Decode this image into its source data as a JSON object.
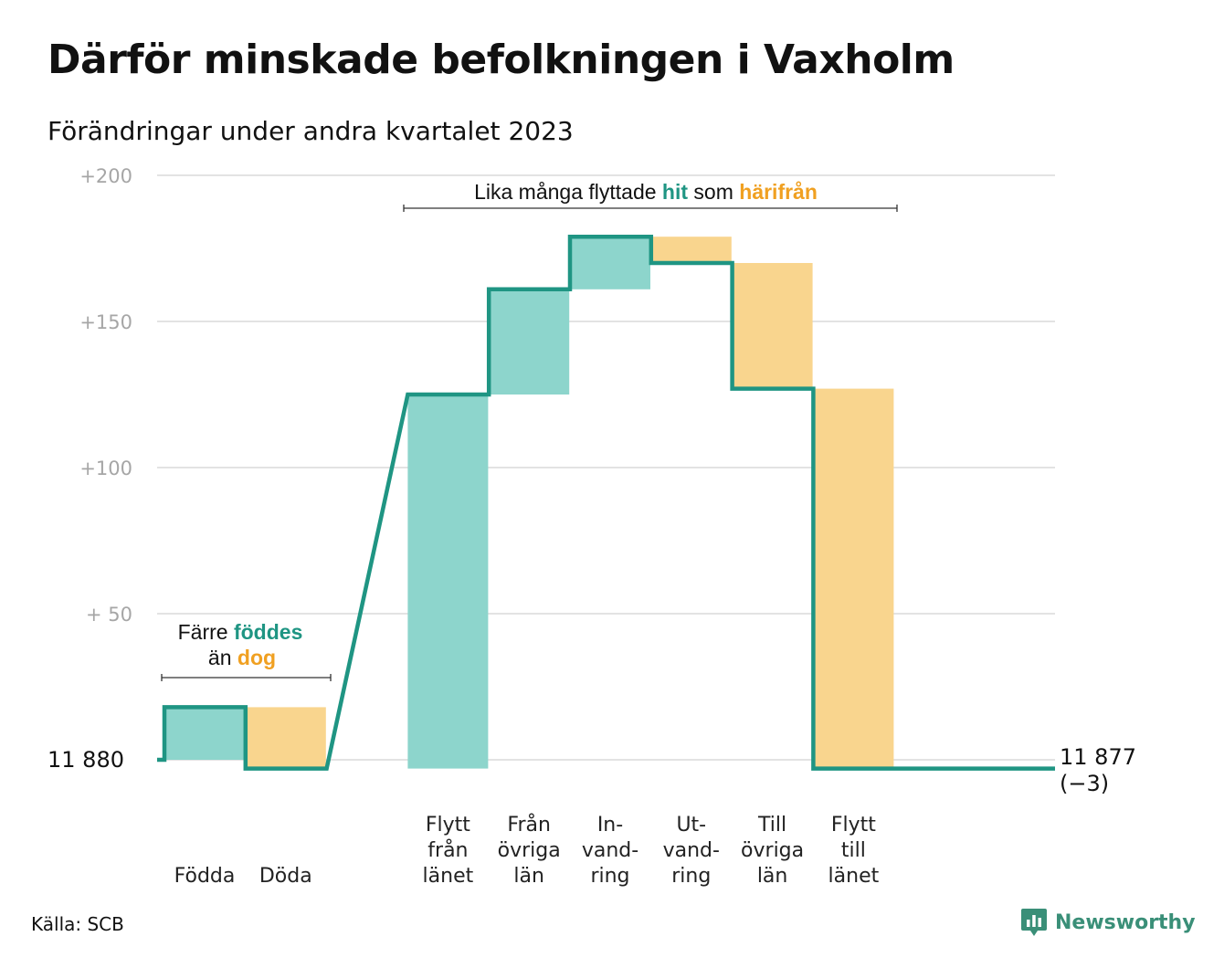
{
  "title": "Därför minskade befolkningen i Vaxholm",
  "subtitle": "Förändringar under andra kvartalet 2023",
  "source": "Källa: SCB",
  "brand": {
    "name": "Newsworthy",
    "icon": "bar-chart-speech-bubble-icon"
  },
  "colors": {
    "increase": "#8dd5cc",
    "decrease": "#f9d58e",
    "line": "#1f9583",
    "accent_in": "#1f9583",
    "accent_out": "#f0a021",
    "grid": "#e3e3e3"
  },
  "chart_data": {
    "type": "waterfall",
    "title": "Därför minskade befolkningen i Vaxholm",
    "subtitle": "Förändringar under andra kvartalet 2023",
    "baseline": 11880,
    "y_tick_values": [
      0,
      50,
      100,
      150,
      200
    ],
    "y_tick_labels": [
      "",
      "+  50",
      "+100",
      "+150",
      "+200"
    ],
    "ylim": [
      -3,
      200
    ],
    "grid": true,
    "start_label": "11  880",
    "end_label": [
      "11 877",
      "(−3)"
    ],
    "end_value": 11877,
    "change": -3,
    "steps": [
      {
        "name": "Födda",
        "lines": [
          "Födda"
        ],
        "value": 18,
        "slot": 0
      },
      {
        "name": "Döda",
        "lines": [
          "Döda"
        ],
        "value": -21,
        "slot": 1
      },
      {
        "name": "Flytt från länet",
        "lines": [
          "Flytt",
          "från",
          "länet"
        ],
        "value": 128,
        "slot": 3
      },
      {
        "name": "Från övriga län",
        "lines": [
          "Från",
          "övriga",
          "län"
        ],
        "value": 36,
        "slot": 4
      },
      {
        "name": "Invandring",
        "lines": [
          "In-",
          "vand-",
          "ring"
        ],
        "value": 18,
        "slot": 5
      },
      {
        "name": "Utvandring",
        "lines": [
          "Ut-",
          "vand-",
          "ring"
        ],
        "value": -9,
        "slot": 6
      },
      {
        "name": "Till övriga län",
        "lines": [
          "Till",
          "övriga",
          "län"
        ],
        "value": -43,
        "slot": 7
      },
      {
        "name": "Flytt till länet",
        "lines": [
          "Flytt",
          "till",
          "länet"
        ],
        "value": -130,
        "slot": 8
      }
    ],
    "annotations": [
      {
        "id": "births",
        "lines": [
          [
            {
              "text": "Färre ",
              "style": "plain"
            },
            {
              "text": "föddes",
              "style": "in"
            }
          ],
          [
            {
              "text": "än ",
              "style": "plain"
            },
            {
              "text": "dog",
              "style": "out"
            }
          ]
        ]
      },
      {
        "id": "moves",
        "lines": [
          [
            {
              "text": "Lika många flyttade ",
              "style": "plain"
            },
            {
              "text": "hit",
              "style": "in"
            },
            {
              "text": "  som ",
              "style": "plain"
            },
            {
              "text": "härifrån",
              "style": "out"
            }
          ]
        ]
      }
    ]
  }
}
